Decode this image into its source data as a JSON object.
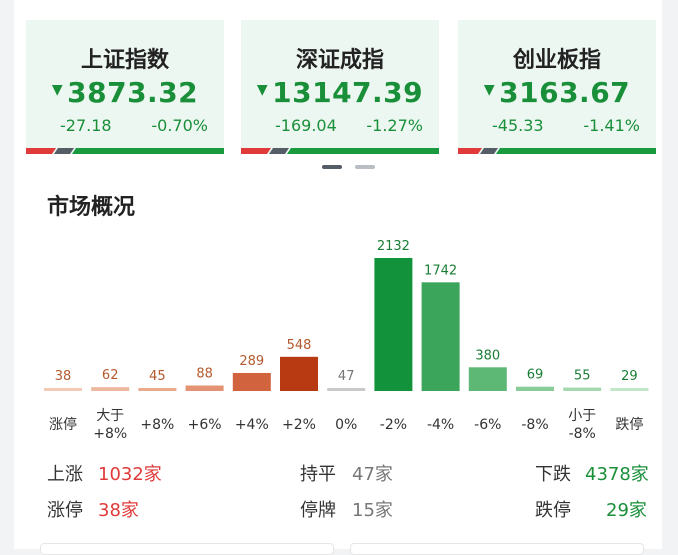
{
  "indices": [
    {
      "name": "上证指数",
      "price": "3873.32",
      "change": "-27.18",
      "pct": "-0.70%"
    },
    {
      "name": "深证成指",
      "price": "13147.39",
      "change": "-169.04",
      "pct": "-1.27%"
    },
    {
      "name": "创业板指",
      "price": "3163.67",
      "change": "-45.33",
      "pct": "-1.41%"
    }
  ],
  "down_arrow": "▼",
  "colors": {
    "up": "#e03a3a",
    "down": "#1a8f3a",
    "flat": "#999999",
    "card_bg": "#edf7f1"
  },
  "market": {
    "title": "市场概况"
  },
  "chart_data": {
    "type": "bar",
    "categories": [
      "涨停",
      "大于\n+8%",
      "+8%",
      "+6%",
      "+4%",
      "+2%",
      "0%",
      "-2%",
      "-4%",
      "-6%",
      "-8%",
      "小于\n-8%",
      "跌停"
    ],
    "values": [
      38,
      62,
      45,
      88,
      289,
      548,
      47,
      2132,
      1742,
      380,
      69,
      55,
      29
    ],
    "colors": [
      "#f3c9b3",
      "#edb8a0",
      "#e9a98c",
      "#e39373",
      "#d2633f",
      "#b83a12",
      "#c9c9c9",
      "#12923a",
      "#3aa55b",
      "#5db775",
      "#8acc98",
      "#a6d8b0",
      "#c3e6c9"
    ],
    "value_colors": [
      "#b35a2e",
      "#b35a2e",
      "#b35a2e",
      "#b35a2e",
      "#b35a2e",
      "#b35a2e",
      "#777777",
      "#1a7d35",
      "#1a7d35",
      "#1a7d35",
      "#1a7d35",
      "#1a7d35",
      "#1a7d35"
    ],
    "ylim": [
      0,
      2132
    ]
  },
  "stats": {
    "up_label": "上涨",
    "up_value": "1032家",
    "flat_label": "持平",
    "flat_value": "47家",
    "down_label": "下跌",
    "down_value": "4378家",
    "limit_up_label": "涨停",
    "limit_up_value": "38家",
    "halt_label": "停牌",
    "halt_value": "15家",
    "limit_down_label": "跌停",
    "limit_down_value": "29家"
  }
}
